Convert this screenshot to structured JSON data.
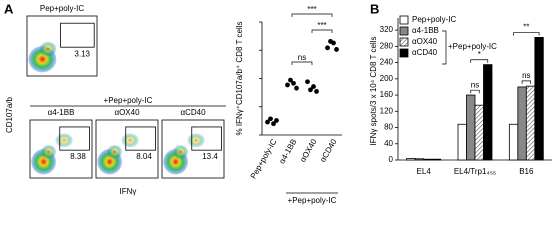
{
  "panel_labels": [
    "A",
    "B"
  ],
  "flow": {
    "y_label": "CD107a/b",
    "x_label": "IFNγ",
    "control": {
      "title": "Pep+poly-IC",
      "gate": "3.13"
    },
    "group_title": "+Pep+poly-IC",
    "treated": [
      {
        "title": "α4-1BB",
        "gate": "8.38"
      },
      {
        "title": "αOX40",
        "gate": "8.04"
      },
      {
        "title": "αCD40",
        "gate": "13.4"
      }
    ]
  },
  "chart_data": [
    {
      "type": "dot",
      "y_label": "% IFNγ⁺CD107a/b⁺ CD8 T cells",
      "categories": [
        "Pep+poly-IC",
        "α4-1BB",
        "αOX40",
        "αCD40"
      ],
      "values": [
        [
          4,
          5,
          3.5,
          4.5
        ],
        [
          15.5,
          17,
          16,
          14.5
        ],
        [
          16.5,
          14,
          15,
          13.5
        ],
        [
          27,
          29,
          28.5,
          26.5
        ]
      ],
      "color": "#000000",
      "ylim": [
        0,
        35
      ],
      "group_label": "+Pep+poly-IC",
      "annotations": [
        "***",
        "***",
        "ns"
      ]
    },
    {
      "type": "bar",
      "y_label": "IFNγ spots/3 x 10⁴ CD8 T cells",
      "categories": [
        "EL4",
        "EL4/Trp1₄₅₅",
        "B16"
      ],
      "series": [
        {
          "name": "Pep+poly-IC",
          "color": "#ffffff",
          "values": [
            4,
            88,
            88
          ]
        },
        {
          "name": "α4-1BB",
          "color": "#888888",
          "values": [
            3,
            160,
            180
          ]
        },
        {
          "name": "αOX40",
          "color": "#999999",
          "hatch": true,
          "values": [
            2,
            135,
            182
          ]
        },
        {
          "name": "αCD40",
          "color": "#000000",
          "values": [
            2,
            235,
            302
          ]
        }
      ],
      "legend_group_label": "+Pep+poly-IC",
      "ylim": [
        0,
        340
      ],
      "yticks": [
        0,
        40,
        80,
        120,
        160,
        200,
        240,
        280,
        320
      ],
      "annotations": [
        "*",
        "ns",
        "ns",
        "**"
      ]
    }
  ]
}
